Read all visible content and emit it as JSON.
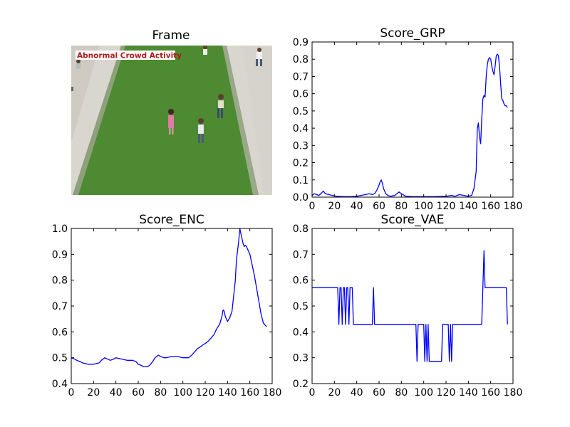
{
  "figure": {
    "frame_title": "Frame",
    "frame_overlay_text": "Abnormal Crowd Activity"
  },
  "colors": {
    "line": "#0000ff",
    "overlay_text": "#b01a1a",
    "grass": "#4e8a32",
    "walkway": "#d9d6cf"
  },
  "chart_data": [
    {
      "id": "grp",
      "type": "line",
      "title": "Score_GRP",
      "xlabel": "",
      "ylabel": "",
      "xlim": [
        0,
        180
      ],
      "ylim": [
        0,
        0.9
      ],
      "xticks": [
        0,
        20,
        40,
        60,
        80,
        100,
        120,
        140,
        160,
        180
      ],
      "yticks": [
        0.0,
        0.1,
        0.2,
        0.3,
        0.4,
        0.5,
        0.6,
        0.7,
        0.8,
        0.9
      ],
      "ytick_labels": [
        "0.0",
        "0.1",
        "0.2",
        "0.3",
        "0.4",
        "0.5",
        "0.6",
        "0.7",
        "0.8",
        "0.9"
      ],
      "grid": false,
      "series": [
        {
          "x": [
            0,
            2,
            4,
            6,
            8,
            10,
            12,
            15,
            18,
            22,
            28,
            35,
            40,
            44,
            48,
            51,
            54,
            56,
            58,
            60,
            61,
            62,
            63,
            64,
            66,
            68,
            70,
            74,
            78,
            80,
            84,
            90,
            100,
            110,
            120,
            125,
            128,
            132,
            136,
            140,
            143,
            145,
            147,
            148,
            149,
            150,
            151,
            152,
            153,
            154,
            155,
            156,
            157,
            158,
            159,
            160,
            161,
            162,
            163,
            164,
            165,
            166,
            167,
            168,
            169,
            170,
            171,
            172,
            173,
            174,
            175
          ],
          "y": [
            0.01,
            0.02,
            0.015,
            0.01,
            0.02,
            0.035,
            0.02,
            0.015,
            0.01,
            0.005,
            0.003,
            0.003,
            0.005,
            0.01,
            0.015,
            0.02,
            0.015,
            0.02,
            0.04,
            0.07,
            0.09,
            0.1,
            0.08,
            0.05,
            0.02,
            0.01,
            0.005,
            0.01,
            0.03,
            0.02,
            0.005,
            0.003,
            0.003,
            0.003,
            0.005,
            0.01,
            0.005,
            0.015,
            0.01,
            0.005,
            0.01,
            0.05,
            0.15,
            0.4,
            0.43,
            0.35,
            0.31,
            0.45,
            0.57,
            0.59,
            0.58,
            0.7,
            0.77,
            0.8,
            0.81,
            0.8,
            0.76,
            0.73,
            0.71,
            0.76,
            0.82,
            0.83,
            0.82,
            0.75,
            0.65,
            0.57,
            0.56,
            0.54,
            0.53,
            0.53,
            0.52
          ]
        }
      ]
    },
    {
      "id": "enc",
      "type": "line",
      "title": "Score_ENC",
      "xlabel": "",
      "ylabel": "",
      "xlim": [
        0,
        180
      ],
      "ylim": [
        0.4,
        1.0
      ],
      "xticks": [
        0,
        20,
        40,
        60,
        80,
        100,
        120,
        140,
        160,
        180
      ],
      "yticks": [
        0.4,
        0.5,
        0.6,
        0.7,
        0.8,
        0.9,
        1.0
      ],
      "ytick_labels": [
        "0.4",
        "0.5",
        "0.6",
        "0.7",
        "0.8",
        "0.9",
        "1.0"
      ],
      "grid": false,
      "series": [
        {
          "x": [
            0,
            3,
            5,
            8,
            10,
            15,
            20,
            25,
            27,
            30,
            35,
            38,
            40,
            45,
            50,
            55,
            58,
            60,
            63,
            65,
            68,
            70,
            73,
            75,
            78,
            80,
            83,
            85,
            90,
            95,
            100,
            105,
            108,
            110,
            113,
            115,
            118,
            120,
            123,
            125,
            128,
            130,
            133,
            135,
            136,
            137,
            138,
            140,
            142,
            144,
            145,
            147,
            148,
            150,
            151,
            152,
            153,
            154,
            155,
            156,
            157,
            158,
            160,
            162,
            164,
            166,
            168,
            170,
            172,
            174,
            175
          ],
          "y": [
            0.5,
            0.495,
            0.49,
            0.485,
            0.48,
            0.475,
            0.475,
            0.48,
            0.49,
            0.5,
            0.49,
            0.495,
            0.5,
            0.495,
            0.49,
            0.49,
            0.485,
            0.475,
            0.47,
            0.465,
            0.465,
            0.47,
            0.485,
            0.5,
            0.51,
            0.505,
            0.5,
            0.5,
            0.505,
            0.505,
            0.5,
            0.5,
            0.51,
            0.52,
            0.535,
            0.54,
            0.55,
            0.555,
            0.565,
            0.575,
            0.59,
            0.61,
            0.63,
            0.66,
            0.685,
            0.68,
            0.66,
            0.64,
            0.655,
            0.68,
            0.72,
            0.8,
            0.88,
            0.95,
            1.0,
            0.98,
            0.96,
            0.94,
            0.93,
            0.935,
            0.93,
            0.92,
            0.9,
            0.86,
            0.82,
            0.77,
            0.72,
            0.67,
            0.635,
            0.625,
            0.62
          ]
        }
      ]
    },
    {
      "id": "vae",
      "type": "line",
      "title": "Score_VAE",
      "xlabel": "",
      "ylabel": "",
      "xlim": [
        0,
        180
      ],
      "ylim": [
        0.2,
        0.8
      ],
      "xticks": [
        0,
        20,
        40,
        60,
        80,
        100,
        120,
        140,
        160,
        180
      ],
      "yticks": [
        0.2,
        0.3,
        0.4,
        0.5,
        0.6,
        0.7,
        0.8
      ],
      "ytick_labels": [
        "0.2",
        "0.3",
        "0.4",
        "0.5",
        "0.6",
        "0.7",
        "0.8"
      ],
      "grid": false,
      "series": [
        {
          "x": [
            0,
            23,
            24,
            25,
            26,
            27,
            28,
            29,
            30,
            31,
            32,
            33,
            34,
            35,
            36,
            37,
            54,
            55,
            56,
            57,
            93,
            94,
            95,
            96,
            100,
            101,
            102,
            103,
            104,
            105,
            106,
            107,
            108,
            116,
            117,
            118,
            120,
            122,
            123,
            124,
            125,
            126,
            127,
            128,
            129,
            152,
            153,
            154,
            155,
            170,
            173,
            174,
            175
          ],
          "y": [
            0.571,
            0.571,
            0.429,
            0.571,
            0.571,
            0.429,
            0.571,
            0.571,
            0.429,
            0.571,
            0.571,
            0.429,
            0.571,
            0.571,
            0.571,
            0.429,
            0.429,
            0.571,
            0.429,
            0.429,
            0.429,
            0.286,
            0.429,
            0.429,
            0.429,
            0.286,
            0.429,
            0.286,
            0.429,
            0.286,
            0.286,
            0.286,
            0.286,
            0.286,
            0.429,
            0.429,
            0.429,
            0.429,
            0.286,
            0.429,
            0.286,
            0.429,
            0.429,
            0.429,
            0.429,
            0.429,
            0.571,
            0.714,
            0.571,
            0.571,
            0.571,
            0.571,
            0.429
          ]
        }
      ]
    }
  ]
}
